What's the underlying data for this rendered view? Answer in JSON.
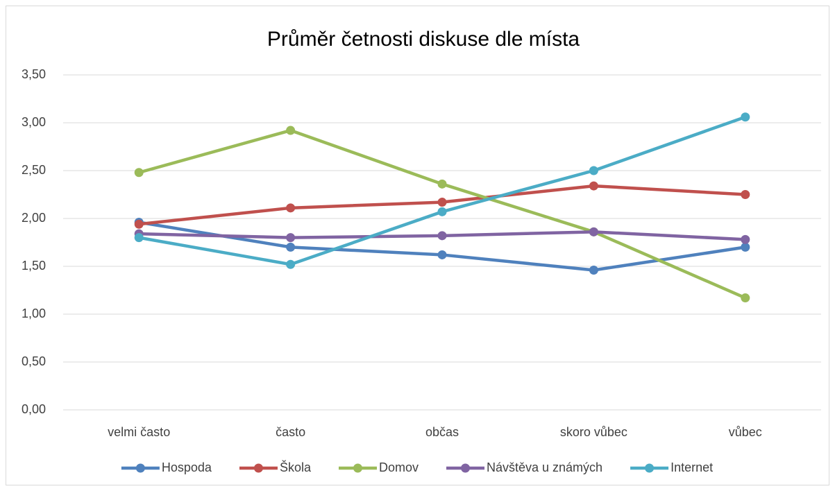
{
  "chart_data": {
    "type": "line",
    "title": "Průměr četnosti diskuse dle místa",
    "categories": [
      "velmi často",
      "často",
      "občas",
      "skoro vůbec",
      "vůbec"
    ],
    "series": [
      {
        "name": "Hospoda",
        "color": "#4f81bd",
        "values": [
          1.96,
          1.7,
          1.62,
          1.46,
          1.7
        ]
      },
      {
        "name": "Škola",
        "color": "#c0504d",
        "values": [
          1.94,
          2.11,
          2.17,
          2.34,
          2.25
        ]
      },
      {
        "name": "Domov",
        "color": "#9bbb59",
        "values": [
          2.48,
          2.92,
          2.36,
          1.86,
          1.17
        ]
      },
      {
        "name": "Návštěva u známých",
        "color": "#8064a2",
        "values": [
          1.84,
          1.8,
          1.82,
          1.86,
          1.78
        ]
      },
      {
        "name": "Internet",
        "color": "#4bacc6",
        "values": [
          1.8,
          1.52,
          2.07,
          2.5,
          3.06
        ]
      }
    ],
    "ylim": [
      0,
      3.5
    ],
    "yticks": [
      {
        "value": 0,
        "label": "0,00"
      },
      {
        "value": 0.5,
        "label": "0,50"
      },
      {
        "value": 1,
        "label": "1,00"
      },
      {
        "value": 1.5,
        "label": "1,50"
      },
      {
        "value": 2,
        "label": "2,00"
      },
      {
        "value": 2.5,
        "label": "2,50"
      },
      {
        "value": 3,
        "label": "3,00"
      },
      {
        "value": 3.5,
        "label": "3,50"
      }
    ],
    "grid": true,
    "legend": "bottom"
  }
}
